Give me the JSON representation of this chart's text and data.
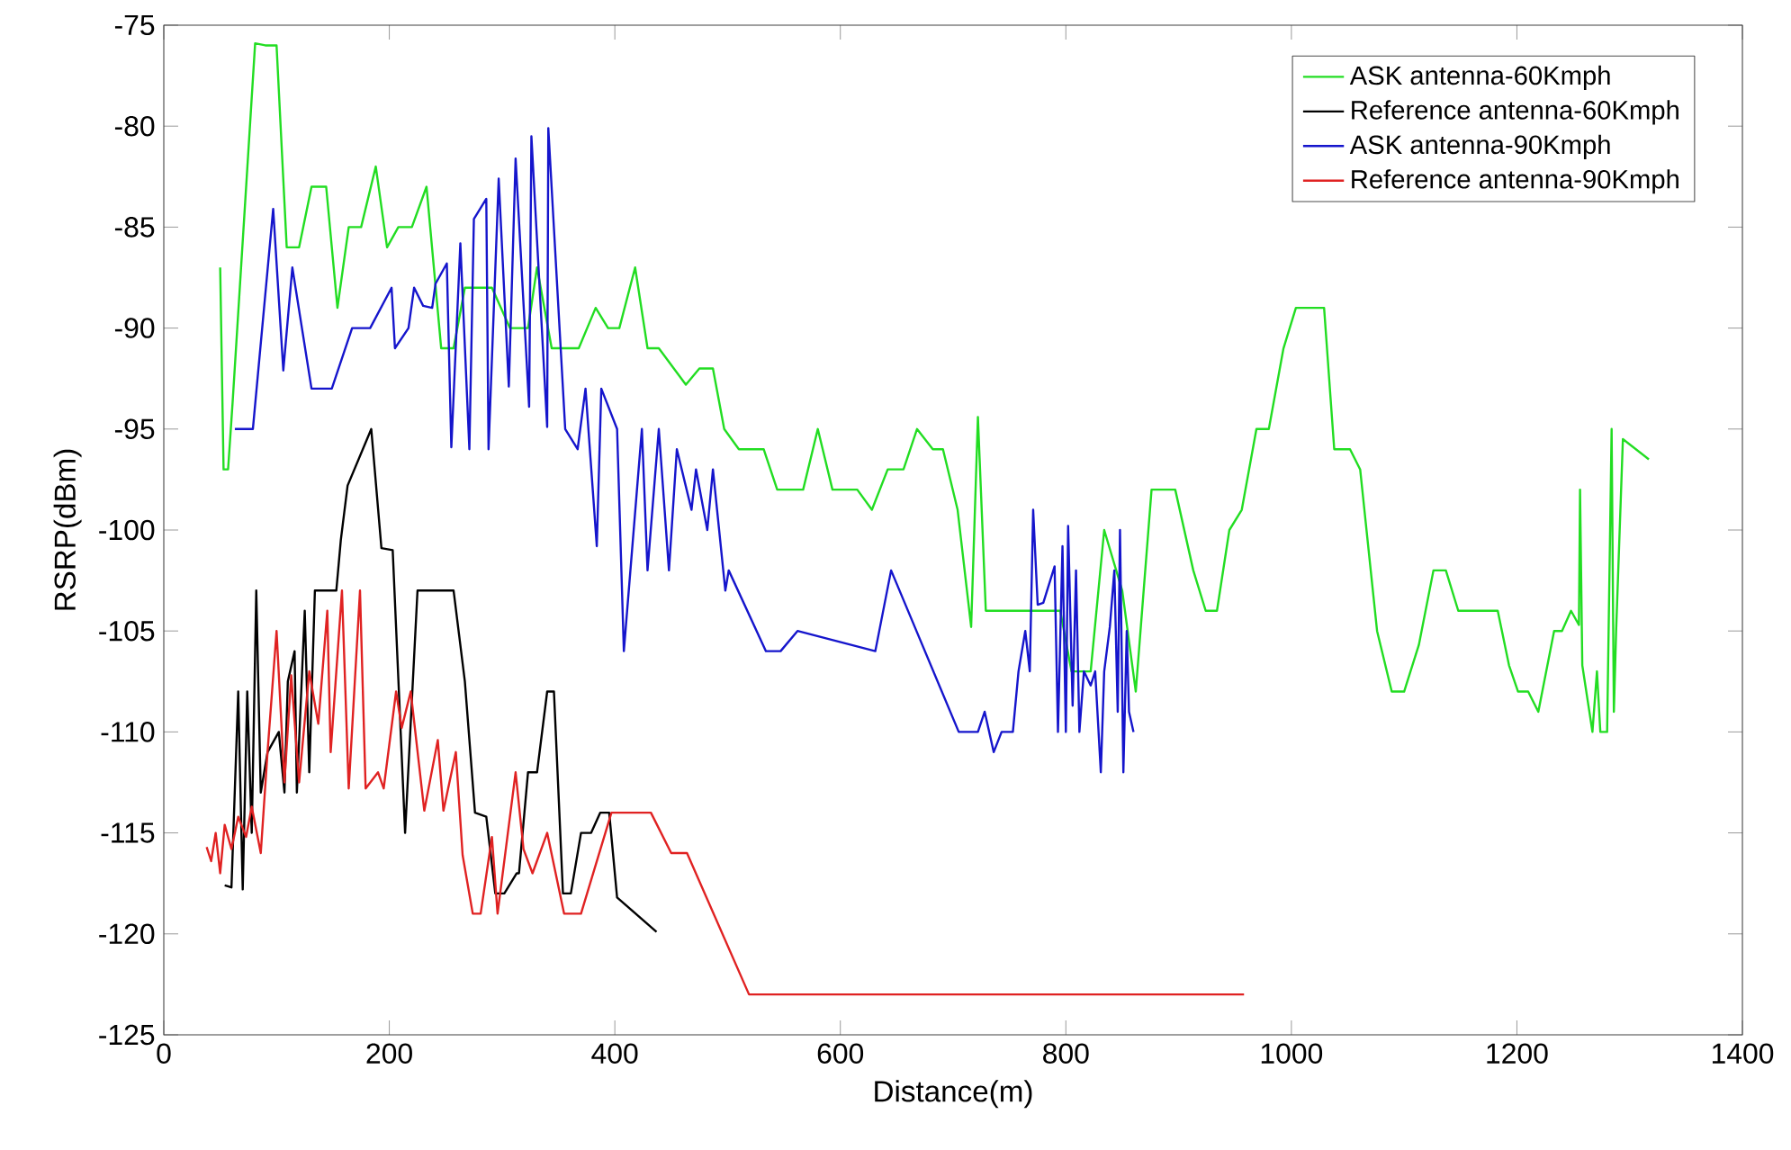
{
  "chart_data": {
    "type": "line",
    "xlabel": "Distance(m)",
    "ylabel": "RSRP(dBm)",
    "xlim": [
      0,
      1400
    ],
    "ylim": [
      -125,
      -75
    ],
    "xticks": [
      0,
      200,
      400,
      600,
      800,
      1000,
      1200,
      1400
    ],
    "yticks": [
      -125,
      -120,
      -115,
      -110,
      -105,
      -100,
      -95,
      -90,
      -85,
      -80,
      -75
    ],
    "grid": false,
    "legend": "top right",
    "marker": "none",
    "line_style": "solid",
    "series": [
      {
        "name": "ASK antenna-60Kmph",
        "color": "#22dd22",
        "x": [
          50,
          53,
          57,
          61,
          81,
          90,
          100,
          109,
          120,
          131,
          144,
          154,
          164,
          175,
          188,
          198,
          208,
          220,
          233,
          246,
          257,
          267,
          291,
          307,
          323,
          331,
          344,
          368,
          383,
          394,
          404,
          418,
          429,
          439,
          463,
          475,
          487,
          497,
          510,
          532,
          544,
          567,
          580,
          593,
          615,
          628,
          642,
          656,
          668,
          682,
          691,
          704,
          716,
          722,
          729,
          767,
          795,
          805,
          822,
          834,
          850,
          862,
          876,
          897,
          913,
          924,
          934,
          945,
          956,
          969,
          980,
          993,
          1004,
          1029,
          1038,
          1052,
          1061,
          1076,
          1089,
          1100,
          1113,
          1126,
          1137,
          1148,
          1183,
          1193,
          1201,
          1210,
          1219,
          1233,
          1240,
          1248,
          1255,
          1256,
          1258,
          1267,
          1271,
          1274,
          1280,
          1284,
          1286,
          1288,
          1294,
          1317
        ],
        "values": [
          -87,
          -97,
          -97,
          -93.7,
          -75.9,
          -76,
          -76,
          -86,
          -86,
          -83,
          -83,
          -89,
          -85,
          -85,
          -82,
          -86,
          -85,
          -85,
          -83,
          -91,
          -91,
          -88,
          -88,
          -90,
          -90,
          -87,
          -91,
          -91,
          -89,
          -90,
          -90,
          -87,
          -91,
          -91,
          -92.8,
          -92,
          -92,
          -95,
          -96,
          -96,
          -98,
          -98,
          -95,
          -98,
          -98,
          -99,
          -97,
          -97,
          -95,
          -96,
          -96,
          -99,
          -104.8,
          -94.4,
          -104,
          -104,
          -104,
          -107,
          -107,
          -100,
          -103,
          -108,
          -98,
          -98,
          -102,
          -104,
          -104,
          -100,
          -99,
          -95,
          -95,
          -91,
          -89,
          -89,
          -96,
          -96,
          -97,
          -105,
          -108,
          -108,
          -105.7,
          -102,
          -102,
          -104,
          -104,
          -106.7,
          -108,
          -108,
          -109,
          -105,
          -105,
          -104,
          -104.7,
          -98,
          -106.7,
          -110,
          -107,
          -110,
          -110,
          -95,
          -109,
          -105,
          -95.5,
          -96.5
        ]
      },
      {
        "name": "Reference antenna-60Kmph",
        "color": "#000000",
        "x": [
          54,
          60,
          66,
          70,
          74,
          78,
          82,
          86,
          92,
          102,
          107,
          110,
          116,
          118,
          125,
          129,
          134,
          153,
          157,
          163,
          184,
          193,
          203,
          214,
          225,
          257,
          267,
          276,
          286,
          294,
          302,
          313,
          315,
          323,
          331,
          340,
          346,
          354,
          361,
          370,
          379,
          387,
          395,
          402,
          437
        ],
        "values": [
          -117.6,
          -117.7,
          -108,
          -117.8,
          -108,
          -115,
          -103,
          -113,
          -111,
          -110,
          -113,
          -107.5,
          -106,
          -113,
          -104,
          -112,
          -103,
          -103,
          -100.5,
          -97.8,
          -95,
          -100.9,
          -101,
          -115,
          -103,
          -103,
          -107.5,
          -114,
          -114.2,
          -118,
          -118,
          -117,
          -117,
          -112,
          -112,
          -108,
          -108,
          -118,
          -118,
          -115,
          -115,
          -114,
          -114,
          -118.2,
          -119.9
        ]
      },
      {
        "name": "ASK antenna-90Kmph",
        "color": "#1515cc",
        "x": [
          63,
          79,
          97,
          106,
          114,
          131,
          149,
          167,
          183,
          202,
          205,
          217,
          222,
          230,
          238,
          241,
          251,
          255,
          263,
          271,
          275,
          286,
          288,
          297,
          306,
          312,
          324,
          326,
          340,
          341,
          356,
          367,
          374,
          384,
          388,
          402,
          408,
          424,
          429,
          439,
          448,
          455,
          468,
          472,
          482,
          487,
          498,
          501,
          534,
          547,
          562,
          631,
          645,
          705,
          722,
          728,
          736,
          743,
          753,
          758,
          764,
          768,
          771,
          775,
          780,
          790,
          793,
          797,
          800,
          802,
          806,
          809,
          812,
          816,
          822,
          826,
          831,
          834,
          839,
          843,
          846,
          848,
          851,
          854,
          856,
          860
        ],
        "values": [
          -95,
          -95,
          -84.1,
          -92.1,
          -87,
          -93,
          -93,
          -90,
          -90,
          -88,
          -91,
          -90,
          -88,
          -88.9,
          -89,
          -87.8,
          -86.8,
          -95.9,
          -85.8,
          -96,
          -84.6,
          -83.6,
          -96,
          -82.6,
          -92.9,
          -81.6,
          -93.9,
          -80.5,
          -94.9,
          -80.1,
          -95,
          -96,
          -93,
          -100.8,
          -93,
          -95,
          -106,
          -95,
          -102,
          -95,
          -102,
          -96,
          -99,
          -97,
          -100,
          -97,
          -103,
          -102,
          -106,
          -106,
          -105,
          -106,
          -102,
          -110,
          -110,
          -109,
          -111,
          -110,
          -110,
          -107,
          -105,
          -107,
          -99,
          -103.7,
          -103.6,
          -101.8,
          -110,
          -100.8,
          -110,
          -99.8,
          -108.7,
          -102,
          -110,
          -107,
          -107.7,
          -107,
          -112,
          -107,
          -104.8,
          -102,
          -109,
          -100,
          -112,
          -105,
          -109,
          -110
        ]
      },
      {
        "name": "Reference antenna-90Kmph",
        "color": "#e02222",
        "x": [
          38,
          42,
          46,
          50,
          54,
          60,
          66,
          73,
          78,
          86,
          92,
          100,
          107,
          113,
          120,
          129,
          137,
          145,
          148,
          158,
          164,
          174,
          179,
          190,
          195,
          206,
          211,
          219,
          231,
          243,
          248,
          259,
          265,
          274,
          281,
          291,
          296,
          312,
          319,
          327,
          340,
          355,
          370,
          397,
          432,
          450,
          464,
          519,
          958
        ],
        "values": [
          -115.7,
          -116.4,
          -115,
          -117,
          -114.6,
          -115.8,
          -114.2,
          -115.2,
          -113.7,
          -116,
          -111,
          -105,
          -112.5,
          -107.2,
          -112.5,
          -107,
          -109.6,
          -104,
          -111,
          -103,
          -112.8,
          -103,
          -112.8,
          -112,
          -112.8,
          -108,
          -109.8,
          -108,
          -113.9,
          -110.4,
          -113.9,
          -111,
          -116.1,
          -119,
          -119,
          -115.2,
          -119,
          -112,
          -115.8,
          -117,
          -115,
          -119,
          -119,
          -114,
          -114,
          -116,
          -116,
          -123,
          -123
        ]
      }
    ]
  }
}
